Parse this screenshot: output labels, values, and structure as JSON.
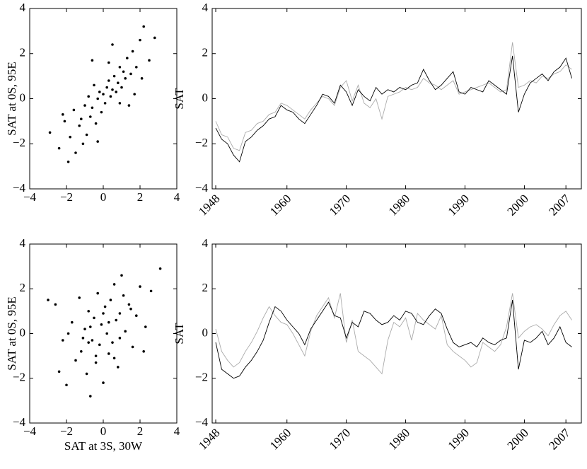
{
  "chart_data": [
    {
      "type": "scatter",
      "ylabel": "SAT at 0S, 95E",
      "xlim": [
        -4,
        4
      ],
      "ylim": [
        -4,
        4
      ],
      "xticks": [
        {
          "value": -4,
          "label": "−4"
        },
        {
          "value": -2,
          "label": "−2"
        },
        0,
        2,
        4
      ],
      "yticks": [
        {
          "value": -4,
          "label": "−4"
        },
        {
          "value": -2,
          "label": "−2"
        },
        0,
        2,
        4
      ],
      "x": [
        -2.9,
        -2.4,
        -2.1,
        -1.8,
        -1.6,
        -1.5,
        -1.3,
        -1.2,
        -1.0,
        -0.9,
        -0.8,
        -0.7,
        -0.6,
        -0.5,
        -0.4,
        -0.3,
        -0.2,
        -0.1,
        0.0,
        0.1,
        0.2,
        0.3,
        0.4,
        0.5,
        0.6,
        0.7,
        0.8,
        0.9,
        1.0,
        1.1,
        1.2,
        1.3,
        1.5,
        1.6,
        1.8,
        2.0,
        2.2,
        2.5,
        2.8,
        -1.9,
        -1.1,
        -0.3,
        0.3,
        0.9,
        1.4,
        -0.6,
        0.5,
        2.1,
        -2.2,
        1.7
      ],
      "series": [
        {
          "color": "#000000",
          "values": [
            -1.5,
            -2.2,
            -1.0,
            -1.7,
            -0.5,
            -2.4,
            -1.2,
            -0.9,
            -0.3,
            -1.6,
            0.1,
            -0.8,
            -0.4,
            0.6,
            -1.1,
            0.0,
            0.3,
            -0.6,
            0.2,
            -0.2,
            0.5,
            0.8,
            0.1,
            0.4,
            1.0,
            0.3,
            0.7,
            1.4,
            0.5,
            1.2,
            0.9,
            1.8,
            1.1,
            2.1,
            1.4,
            2.6,
            3.2,
            1.7,
            2.7,
            -2.8,
            -2.0,
            -1.9,
            1.6,
            -0.2,
            -0.3,
            1.7,
            2.4,
            0.9,
            -0.7,
            0.2
          ]
        }
      ]
    },
    {
      "type": "line",
      "ylabel": "SAT",
      "xlim": [
        1947.4,
        2009.6
      ],
      "ylim": [
        -4,
        4
      ],
      "xticks": [
        1948,
        1960,
        1970,
        1980,
        1990,
        2000,
        2007
      ],
      "yticks": [
        {
          "value": -4,
          "label": "−4"
        },
        {
          "value": -2,
          "label": "−2"
        },
        0,
        2,
        4
      ],
      "x": [
        1948,
        1949,
        1950,
        1951,
        1952,
        1953,
        1954,
        1955,
        1956,
        1957,
        1958,
        1959,
        1960,
        1961,
        1962,
        1963,
        1964,
        1965,
        1966,
        1967,
        1968,
        1969,
        1970,
        1971,
        1972,
        1973,
        1974,
        1975,
        1976,
        1977,
        1978,
        1979,
        1980,
        1981,
        1982,
        1983,
        1984,
        1985,
        1986,
        1987,
        1988,
        1989,
        1990,
        1991,
        1992,
        1993,
        1994,
        1995,
        1996,
        1997,
        1998,
        1999,
        2000,
        2001,
        2002,
        2003,
        2004,
        2005,
        2006,
        2007,
        2008
      ],
      "series": [
        {
          "color": "#aaaaaa",
          "values": [
            -1.0,
            -1.6,
            -1.7,
            -2.2,
            -2.3,
            -1.5,
            -1.4,
            -1.1,
            -1.0,
            -0.7,
            -0.6,
            -0.2,
            -0.3,
            -0.5,
            -0.7,
            -0.9,
            -0.5,
            -0.2,
            0.1,
            0.0,
            -0.3,
            0.5,
            0.8,
            -0.1,
            0.6,
            -0.2,
            -0.4,
            0.0,
            -0.9,
            0.1,
            0.2,
            0.3,
            0.5,
            0.4,
            0.5,
            0.9,
            0.7,
            0.6,
            0.4,
            0.6,
            0.8,
            0.2,
            0.3,
            0.4,
            0.5,
            0.6,
            0.7,
            0.5,
            0.3,
            0.4,
            2.5,
            0.5,
            0.6,
            0.8,
            0.7,
            1.0,
            0.9,
            1.1,
            1.2,
            1.5,
            1.3
          ]
        },
        {
          "color": "#000000",
          "values": [
            -1.3,
            -1.8,
            -2.0,
            -2.5,
            -2.8,
            -1.9,
            -1.7,
            -1.4,
            -1.2,
            -0.9,
            -0.8,
            -0.3,
            -0.5,
            -0.6,
            -0.9,
            -1.1,
            -0.7,
            -0.3,
            0.2,
            0.1,
            -0.2,
            0.6,
            0.3,
            -0.3,
            0.4,
            0.1,
            -0.1,
            0.5,
            0.2,
            0.4,
            0.3,
            0.5,
            0.4,
            0.6,
            0.7,
            1.3,
            0.8,
            0.4,
            0.6,
            0.9,
            1.2,
            0.3,
            0.2,
            0.5,
            0.4,
            0.3,
            0.8,
            0.6,
            0.4,
            0.2,
            1.9,
            -0.6,
            0.2,
            0.7,
            0.9,
            1.1,
            0.8,
            1.2,
            1.4,
            1.8,
            0.9
          ]
        }
      ]
    },
    {
      "type": "scatter",
      "ylabel": "SAT at 0S, 95E",
      "xlabel": "SAT at 3S, 30W",
      "xlim": [
        -4,
        4
      ],
      "ylim": [
        -4,
        4
      ],
      "xticks": [
        {
          "value": -4,
          "label": "−4"
        },
        {
          "value": -2,
          "label": "−2"
        },
        0,
        2,
        4
      ],
      "yticks": [
        {
          "value": -4,
          "label": "−4"
        },
        {
          "value": -2,
          "label": "−2"
        },
        0,
        2,
        4
      ],
      "x": [
        -3.0,
        -2.6,
        -2.2,
        -2.0,
        -1.7,
        -1.5,
        -1.3,
        -1.2,
        -1.0,
        -0.9,
        -0.8,
        -0.7,
        -0.6,
        -0.5,
        -0.4,
        -0.3,
        -0.2,
        -0.1,
        0.0,
        0.1,
        0.2,
        0.3,
        0.4,
        0.5,
        0.6,
        0.7,
        0.8,
        0.9,
        1.0,
        1.2,
        1.4,
        1.6,
        1.8,
        2.0,
        2.3,
        2.6,
        3.1,
        -1.9,
        -1.1,
        -0.4,
        0.3,
        0.9,
        1.5,
        -0.7,
        0.6,
        2.2,
        -2.4,
        1.1,
        0.0,
        -0.8
      ],
      "series": [
        {
          "color": "#000000",
          "values": [
            1.5,
            1.3,
            -0.3,
            -2.3,
            0.5,
            -1.2,
            1.6,
            -0.8,
            0.2,
            -1.8,
            1.0,
            -2.8,
            -0.3,
            0.7,
            -1.3,
            1.8,
            -0.5,
            0.4,
            -2.2,
            1.2,
            0.0,
            -0.9,
            1.5,
            -0.4,
            2.2,
            0.6,
            -1.5,
            0.9,
            2.6,
            0.1,
            1.3,
            -0.6,
            0.8,
            2.1,
            0.3,
            1.9,
            2.9,
            0.0,
            -0.2,
            -1.0,
            0.5,
            -0.2,
            1.1,
            0.3,
            -1.1,
            -0.8,
            -1.7,
            1.7,
            0.9,
            -0.4
          ]
        }
      ]
    },
    {
      "type": "line",
      "ylabel": "SAT",
      "xlim": [
        1947.4,
        2009.6
      ],
      "ylim": [
        -4,
        4
      ],
      "xticks": [
        1948,
        1960,
        1970,
        1980,
        1990,
        2000,
        2007
      ],
      "yticks": [
        {
          "value": -4,
          "label": "−4"
        },
        {
          "value": -2,
          "label": "−2"
        },
        0,
        2,
        4
      ],
      "x": [
        1948,
        1949,
        1950,
        1951,
        1952,
        1953,
        1954,
        1955,
        1956,
        1957,
        1958,
        1959,
        1960,
        1961,
        1962,
        1963,
        1964,
        1965,
        1966,
        1967,
        1968,
        1969,
        1970,
        1971,
        1972,
        1973,
        1974,
        1975,
        1976,
        1977,
        1978,
        1979,
        1980,
        1981,
        1982,
        1983,
        1984,
        1985,
        1986,
        1987,
        1988,
        1989,
        1990,
        1991,
        1992,
        1993,
        1994,
        1995,
        1996,
        1997,
        1998,
        1999,
        2000,
        2001,
        2002,
        2003,
        2004,
        2005,
        2006,
        2007,
        2008
      ],
      "series": [
        {
          "color": "#aaaaaa",
          "values": [
            0.2,
            -0.8,
            -1.2,
            -1.5,
            -1.3,
            -0.8,
            -0.4,
            0.1,
            0.7,
            1.2,
            0.8,
            0.5,
            0.4,
            0.0,
            -0.5,
            -1.0,
            0.1,
            0.8,
            1.2,
            1.6,
            0.7,
            1.8,
            -0.4,
            0.6,
            -0.8,
            -1.0,
            -1.2,
            -1.5,
            -1.8,
            -0.3,
            0.5,
            0.3,
            0.7,
            -0.3,
            0.9,
            0.6,
            0.4,
            0.2,
            0.8,
            -0.5,
            -0.8,
            -1.0,
            -1.2,
            -1.5,
            -1.3,
            -0.4,
            -0.6,
            -0.8,
            -0.5,
            0.3,
            1.8,
            -0.2,
            0.1,
            0.3,
            0.4,
            0.2,
            -0.1,
            0.4,
            0.8,
            1.0,
            0.6
          ]
        },
        {
          "color": "#000000",
          "values": [
            -0.4,
            -1.6,
            -1.8,
            -2.0,
            -1.9,
            -1.5,
            -1.2,
            -0.8,
            -0.3,
            0.5,
            1.2,
            1.0,
            0.6,
            0.3,
            0.0,
            -0.5,
            0.2,
            0.6,
            1.0,
            1.4,
            0.8,
            0.7,
            -0.2,
            0.5,
            0.3,
            1.0,
            0.9,
            0.6,
            0.4,
            0.5,
            0.8,
            0.6,
            1.0,
            0.9,
            0.5,
            0.4,
            0.8,
            1.1,
            0.9,
            0.2,
            -0.4,
            -0.6,
            -0.5,
            -0.4,
            -0.6,
            -0.2,
            -0.4,
            -0.5,
            -0.3,
            -0.2,
            1.5,
            -1.6,
            -0.3,
            -0.4,
            -0.2,
            0.1,
            -0.5,
            -0.2,
            0.3,
            -0.4,
            -0.6
          ]
        }
      ]
    }
  ]
}
